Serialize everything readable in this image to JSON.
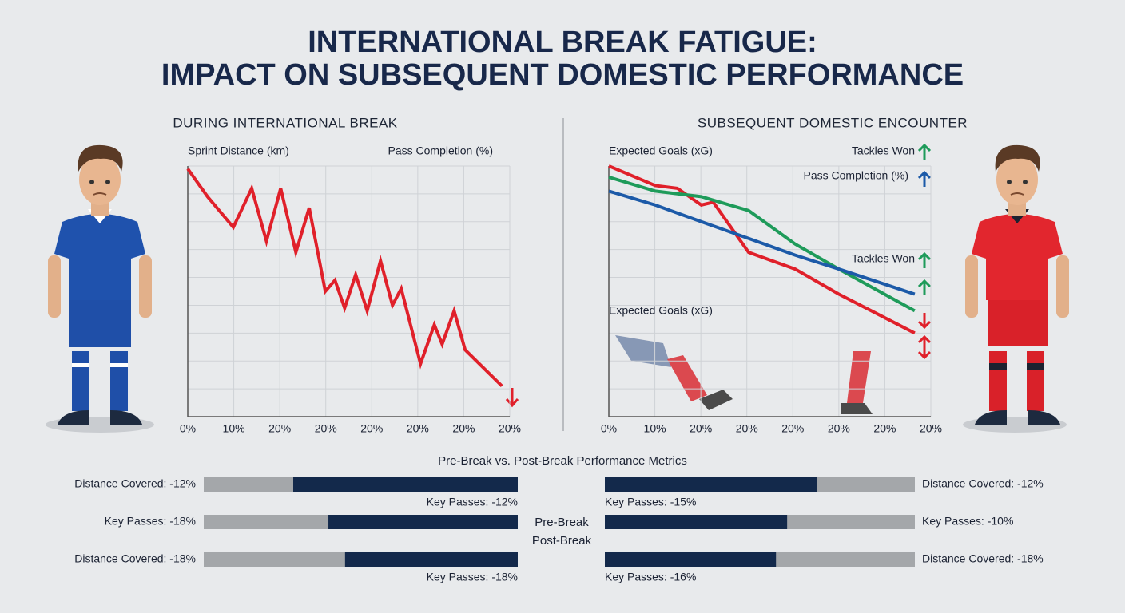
{
  "header": {
    "title_lines": [
      "INTERNATIONAL BREAK FATIGUE:",
      "IMPACT ON SUBSEQUENT DOMESTIC PERFORMANCE"
    ]
  },
  "chart_data": [
    {
      "type": "line",
      "title": "DURING INTERNATIONAL BREAK",
      "y_label": "Sprint Distance (km)",
      "y2_label": "Pass Completion (%)",
      "xlim": [
        0,
        7
      ],
      "xticks": [
        {
          "value": 0,
          "label": "0%"
        },
        {
          "value": 1,
          "label": "10%"
        },
        {
          "value": 2,
          "label": "20%"
        },
        {
          "value": 3,
          "label": "20%"
        },
        {
          "value": 4,
          "label": "20%"
        },
        {
          "value": 5,
          "label": "20%"
        },
        {
          "value": 6,
          "label": "20%"
        },
        {
          "value": 7,
          "label": "20%"
        }
      ],
      "ylim": [
        0,
        9
      ],
      "yticks": [
        0,
        1,
        2,
        3,
        4,
        5,
        6,
        7,
        8,
        9
      ],
      "grid": true,
      "series": [
        {
          "color": "#e0202a",
          "x": [
            0,
            0.43,
            0.99,
            1.39,
            1.71,
            2.02,
            2.35,
            2.64,
            2.99,
            3.2,
            3.41,
            3.65,
            3.9,
            4.19,
            4.45,
            4.64,
            5.06,
            5.36,
            5.53,
            5.79,
            6.03,
            6.83
          ],
          "values": [
            8.9,
            7.9,
            6.8,
            8.2,
            6.3,
            8.2,
            5.9,
            7.5,
            4.5,
            4.9,
            3.9,
            5.1,
            3.8,
            5.6,
            4.0,
            4.6,
            1.9,
            3.3,
            2.6,
            3.8,
            2.4,
            1.1
          ]
        }
      ]
    },
    {
      "type": "line",
      "title": "SUBSEQUENT DOMESTIC ENCOUNTER",
      "annotations": [
        "Tackles Won",
        "Expected Goals (xG)"
      ],
      "xlim": [
        0,
        7
      ],
      "xticks": [
        {
          "value": 0,
          "label": "0%"
        },
        {
          "value": 1,
          "label": "10%"
        },
        {
          "value": 2,
          "label": "20%"
        },
        {
          "value": 3,
          "label": "20%"
        },
        {
          "value": 4,
          "label": "20%"
        },
        {
          "value": 5,
          "label": "20%"
        },
        {
          "value": 6,
          "label": "20%"
        },
        {
          "value": 7,
          "label": "20%"
        }
      ],
      "ylim": [
        0,
        9
      ],
      "yticks": [
        0,
        1,
        2,
        3,
        4,
        5,
        6,
        7,
        8,
        9
      ],
      "grid": true,
      "series": [
        {
          "name": "Expected Goals (xG)",
          "color": "#e0202a",
          "x": [
            0,
            1.01,
            1.49,
            2.01,
            2.27,
            3.04,
            4.05,
            5.0,
            6.65
          ],
          "values": [
            9.0,
            8.3,
            8.2,
            7.6,
            7.7,
            5.9,
            5.3,
            4.4,
            3.0
          ]
        },
        {
          "name": "Tackles Won",
          "color": "#1e9b5a",
          "x": [
            0,
            1.01,
            2.01,
            3.04,
            4.05,
            5.0,
            6.65
          ],
          "values": [
            8.6,
            8.1,
            7.9,
            7.4,
            6.2,
            5.3,
            3.8
          ]
        },
        {
          "name": "Pass Completion (%)",
          "color": "#1c5aa8",
          "x": [
            0,
            1.01,
            2.01,
            3.04,
            4.05,
            5.0,
            6.65
          ],
          "values": [
            8.1,
            7.6,
            7.0,
            6.4,
            5.8,
            5.3,
            4.4
          ]
        }
      ]
    },
    {
      "type": "hbar",
      "title": "Pre-Break vs. Post-Break Performance Metrics",
      "legend": [
        "Pre-Break",
        "Post-Break"
      ],
      "xlim": [
        0,
        100
      ],
      "color": "#13294b",
      "track_color": "#a4a7aa",
      "rows": [
        {
          "label": "Distance Covered: -12%",
          "note": "Key Passes: -12%",
          "value": 71.5
        },
        {
          "label": "Key Passes: -18%",
          "value": 60.3
        },
        {
          "label": "Distance Covered: -18%",
          "note": "Key Passes: -18%",
          "value": 55
        },
        {
          "label": "Distance Covered: -12%",
          "note": "Key Passes: -15%",
          "value": 68.3
        },
        {
          "label": "Key Passes: -10%",
          "value": 58.8
        },
        {
          "label": "Distance Covered: -18%",
          "note": "Key Passes: -16%",
          "value": 55.2
        }
      ]
    }
  ]
}
